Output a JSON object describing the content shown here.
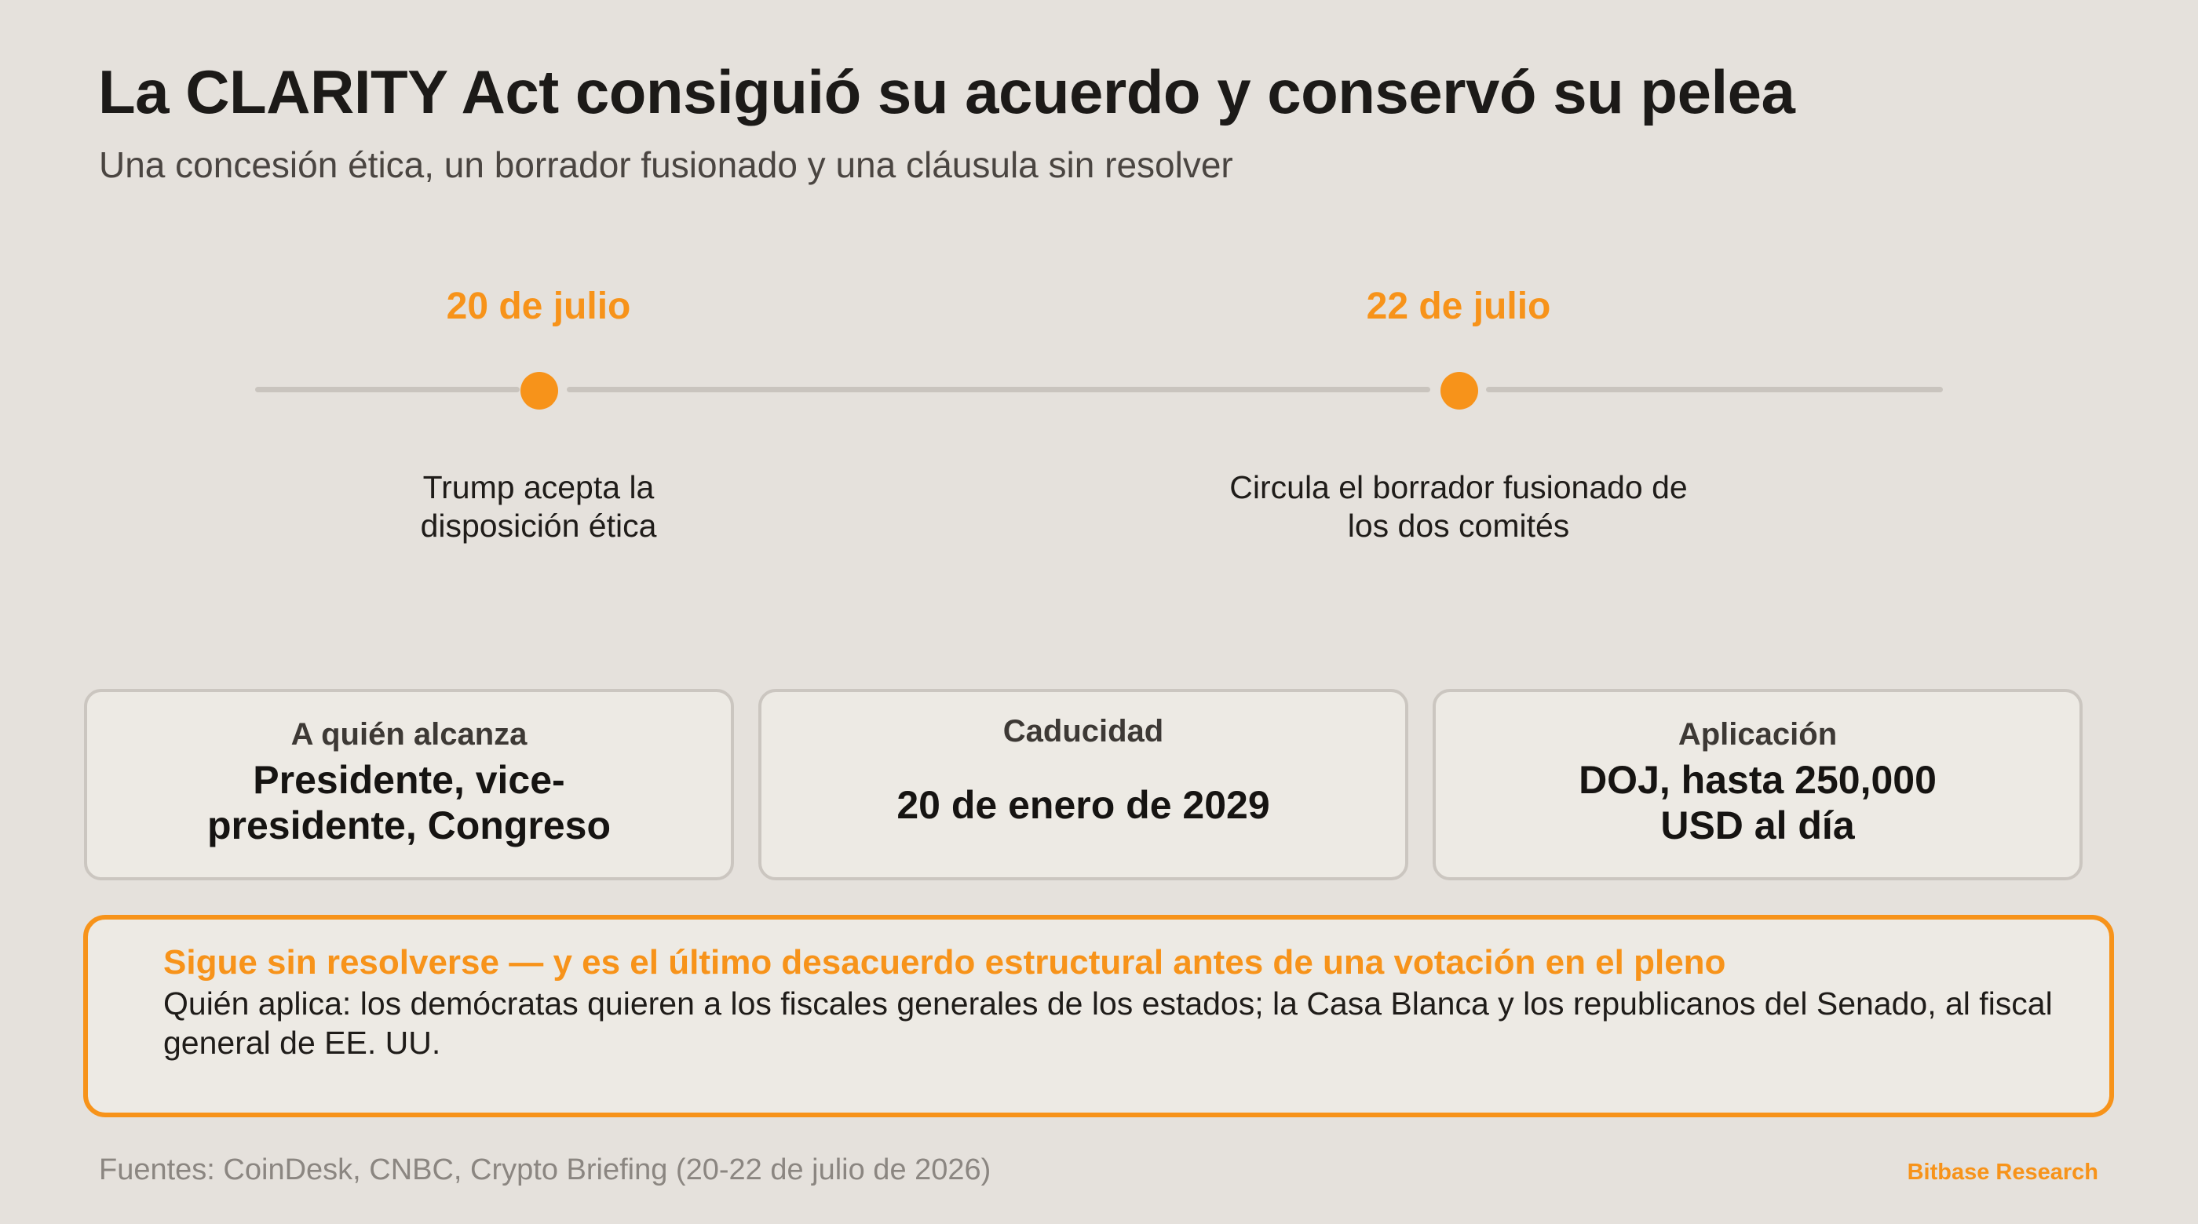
{
  "title": "La CLARITY Act consiguió su acuerdo y conservó su pelea",
  "subtitle": "Una concesión ética, un borrador fusionado y una cláusula sin resolver",
  "timeline": [
    {
      "date": "20 de julio",
      "description": "Trump acepta la disposición ética"
    },
    {
      "date": "22 de julio",
      "description": "Circula el borrador fusionado de los dos comités"
    }
  ],
  "cards": [
    {
      "label": "A quién alcanza",
      "value": "Presidente, vice-presidente, Congreso"
    },
    {
      "label": "Caducidad",
      "value": "20 de enero de 2029"
    },
    {
      "label": "Aplicación",
      "value": "DOJ, hasta 250,000 USD al día"
    }
  ],
  "callout": {
    "title": "Sigue sin resolverse — y es el último desacuerdo estructural antes de una votación en el pleno",
    "body": "Quién aplica: los demócratas quieren a los fiscales generales de los estados; la Casa Blanca y los republicanos del Senado, al fiscal general de EE. UU."
  },
  "sources": "Fuentes: CoinDesk, CNBC, Crypto Briefing (20-22 de julio de 2026)",
  "brand": "Bitbase Research",
  "colors": {
    "accent": "#f7931a",
    "background": "#e5e1dc",
    "card_background": "#edeae4",
    "card_border": "#cbc6c0",
    "timeline_line": "#c9c4be"
  }
}
